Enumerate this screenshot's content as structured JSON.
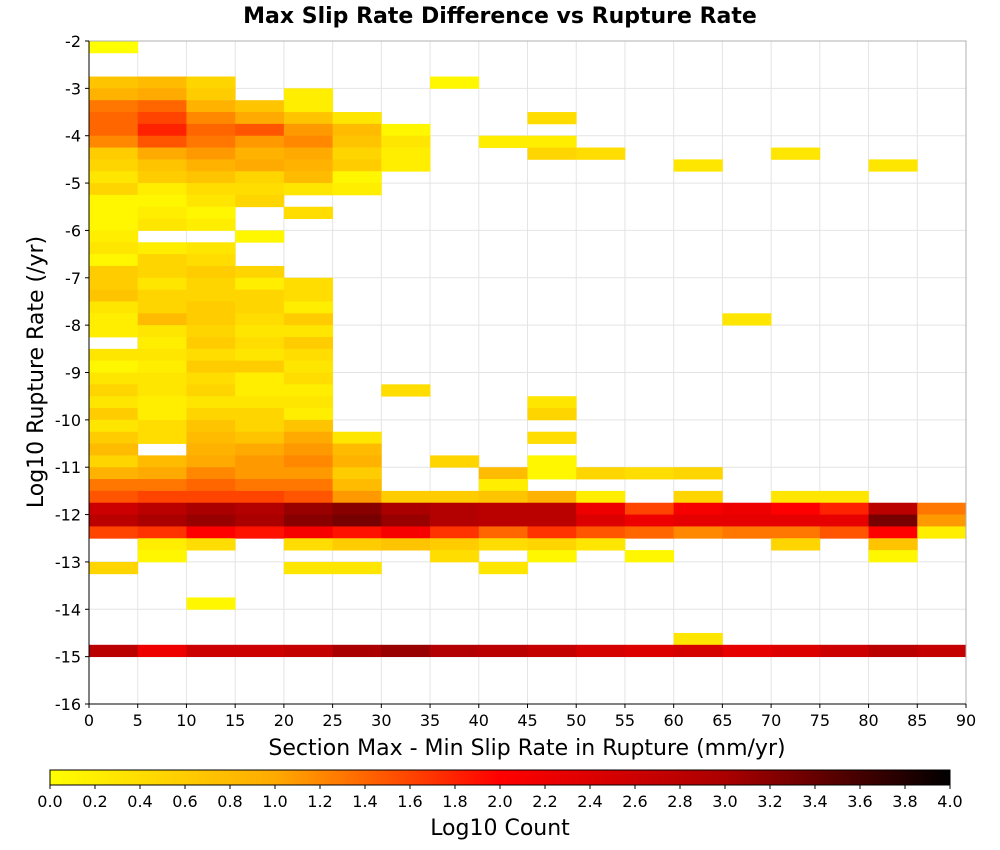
{
  "chart_data": {
    "type": "heatmap",
    "title": "Max Slip Rate Difference vs Rupture Rate",
    "xlabel": "Section Max - Min Slip Rate in Rupture (mm/yr)",
    "ylabel": "Log10 Rupture Rate (/yr)",
    "xlim": [
      0,
      90
    ],
    "ylim": [
      -16,
      -2
    ],
    "x_ticks": [
      0,
      5,
      10,
      15,
      20,
      25,
      30,
      35,
      40,
      45,
      50,
      55,
      60,
      65,
      70,
      75,
      80,
      85,
      90
    ],
    "y_ticks": [
      -2,
      -3,
      -4,
      -5,
      -6,
      -7,
      -8,
      -9,
      -10,
      -11,
      -12,
      -13,
      -14,
      -15,
      -16
    ],
    "x_bin_width": 5,
    "y_bin_height": 0.25,
    "grid": true,
    "colorbar": {
      "label": "Log10 Count",
      "min": 0.0,
      "max": 4.0,
      "ticks": [
        "0.0",
        "0.2",
        "0.4",
        "0.6",
        "0.8",
        "1.0",
        "1.2",
        "1.4",
        "1.6",
        "1.8",
        "2.0",
        "2.2",
        "2.4",
        "2.6",
        "2.8",
        "3.0",
        "3.2",
        "3.4",
        "3.6",
        "3.8",
        "4.0"
      ],
      "colors": [
        "#ffff00",
        "#ffaa00",
        "#ff0000",
        "#aa0000",
        "#000000"
      ],
      "placement": "bottom"
    },
    "cells": [
      [
        0,
        -2.25,
        0.0
      ],
      [
        0,
        -3.0,
        0.7
      ],
      [
        5,
        -3.0,
        0.8
      ],
      [
        10,
        -3.0,
        0.5
      ],
      [
        35,
        -3.0,
        0.1
      ],
      [
        0,
        -3.25,
        0.9
      ],
      [
        5,
        -3.25,
        1.0
      ],
      [
        10,
        -3.25,
        0.6
      ],
      [
        20,
        -3.25,
        0.2
      ],
      [
        0,
        -3.5,
        1.3
      ],
      [
        5,
        -3.5,
        1.4
      ],
      [
        10,
        -3.5,
        0.9
      ],
      [
        15,
        -3.5,
        0.7
      ],
      [
        20,
        -3.5,
        0.2
      ],
      [
        0,
        -3.75,
        1.4
      ],
      [
        5,
        -3.75,
        1.6
      ],
      [
        10,
        -3.75,
        1.2
      ],
      [
        15,
        -3.75,
        1.0
      ],
      [
        20,
        -3.75,
        0.7
      ],
      [
        25,
        -3.75,
        0.3
      ],
      [
        45,
        -3.75,
        0.4
      ],
      [
        0,
        -4.0,
        1.4
      ],
      [
        5,
        -4.0,
        1.8
      ],
      [
        10,
        -4.0,
        1.4
      ],
      [
        15,
        -4.0,
        1.5
      ],
      [
        20,
        -4.0,
        1.1
      ],
      [
        25,
        -4.0,
        0.8
      ],
      [
        30,
        -4.0,
        0.1
      ],
      [
        0,
        -4.25,
        1.2
      ],
      [
        5,
        -4.25,
        1.5
      ],
      [
        10,
        -4.25,
        1.3
      ],
      [
        15,
        -4.25,
        1.1
      ],
      [
        20,
        -4.25,
        1.2
      ],
      [
        25,
        -4.25,
        0.7
      ],
      [
        30,
        -4.25,
        0.3
      ],
      [
        40,
        -4.25,
        0.2
      ],
      [
        45,
        -4.25,
        0.2
      ],
      [
        0,
        -4.5,
        0.6
      ],
      [
        5,
        -4.5,
        1.0
      ],
      [
        10,
        -4.5,
        1.1
      ],
      [
        15,
        -4.5,
        0.9
      ],
      [
        20,
        -4.5,
        1.0
      ],
      [
        25,
        -4.5,
        0.5
      ],
      [
        30,
        -4.5,
        0.2
      ],
      [
        45,
        -4.5,
        0.5
      ],
      [
        50,
        -4.5,
        0.4
      ],
      [
        70,
        -4.5,
        0.3
      ],
      [
        0,
        -4.75,
        0.5
      ],
      [
        5,
        -4.75,
        0.7
      ],
      [
        10,
        -4.75,
        0.9
      ],
      [
        15,
        -4.75,
        1.0
      ],
      [
        20,
        -4.75,
        0.9
      ],
      [
        25,
        -4.75,
        0.6
      ],
      [
        30,
        -4.75,
        0.2
      ],
      [
        60,
        -4.75,
        0.3
      ],
      [
        80,
        -4.75,
        0.3
      ],
      [
        0,
        -5.0,
        0.3
      ],
      [
        5,
        -5.0,
        0.6
      ],
      [
        10,
        -5.0,
        0.7
      ],
      [
        15,
        -5.0,
        0.5
      ],
      [
        20,
        -5.0,
        0.8
      ],
      [
        25,
        -5.0,
        0.1
      ],
      [
        0,
        -5.25,
        0.5
      ],
      [
        5,
        -5.25,
        0.2
      ],
      [
        10,
        -5.25,
        0.4
      ],
      [
        15,
        -5.25,
        0.4
      ],
      [
        20,
        -5.25,
        0.3
      ],
      [
        25,
        -5.25,
        0.2
      ],
      [
        0,
        -5.5,
        0.1
      ],
      [
        5,
        -5.5,
        0.1
      ],
      [
        10,
        -5.5,
        0.3
      ],
      [
        15,
        -5.5,
        0.5
      ],
      [
        0,
        -5.75,
        0.1
      ],
      [
        5,
        -5.75,
        0.2
      ],
      [
        10,
        -5.75,
        0.1
      ],
      [
        20,
        -5.75,
        0.4
      ],
      [
        0,
        -6.0,
        0.1
      ],
      [
        5,
        -6.0,
        0.3
      ],
      [
        10,
        -6.0,
        0.2
      ],
      [
        0,
        -6.25,
        0.2
      ],
      [
        15,
        -6.25,
        0.1
      ],
      [
        0,
        -6.5,
        0.3
      ],
      [
        5,
        -6.5,
        0.2
      ],
      [
        10,
        -6.5,
        0.3
      ],
      [
        0,
        -6.75,
        0.1
      ],
      [
        5,
        -6.75,
        0.5
      ],
      [
        10,
        -6.75,
        0.4
      ],
      [
        0,
        -7.0,
        0.6
      ],
      [
        5,
        -7.0,
        0.5
      ],
      [
        10,
        -7.0,
        0.6
      ],
      [
        15,
        -7.0,
        0.5
      ],
      [
        0,
        -7.25,
        0.6
      ],
      [
        5,
        -7.25,
        0.3
      ],
      [
        10,
        -7.25,
        0.5
      ],
      [
        15,
        -7.25,
        0.2
      ],
      [
        20,
        -7.25,
        0.4
      ],
      [
        0,
        -7.5,
        0.7
      ],
      [
        5,
        -7.5,
        0.5
      ],
      [
        10,
        -7.5,
        0.5
      ],
      [
        15,
        -7.5,
        0.5
      ],
      [
        20,
        -7.5,
        0.4
      ],
      [
        0,
        -7.75,
        0.3
      ],
      [
        5,
        -7.75,
        0.5
      ],
      [
        10,
        -7.75,
        0.6
      ],
      [
        15,
        -7.75,
        0.5
      ],
      [
        20,
        -7.75,
        0.2
      ],
      [
        0,
        -8.0,
        0.2
      ],
      [
        5,
        -8.0,
        0.8
      ],
      [
        10,
        -8.0,
        0.6
      ],
      [
        15,
        -8.0,
        0.4
      ],
      [
        20,
        -8.0,
        0.6
      ],
      [
        65,
        -8.0,
        0.3
      ],
      [
        0,
        -8.25,
        0.2
      ],
      [
        5,
        -8.25,
        0.3
      ],
      [
        10,
        -8.25,
        0.5
      ],
      [
        15,
        -8.25,
        0.3
      ],
      [
        20,
        -8.25,
        0.3
      ],
      [
        5,
        -8.5,
        0.2
      ],
      [
        10,
        -8.5,
        0.6
      ],
      [
        15,
        -8.5,
        0.4
      ],
      [
        20,
        -8.5,
        0.6
      ],
      [
        0,
        -8.75,
        0.3
      ],
      [
        5,
        -8.75,
        0.3
      ],
      [
        10,
        -8.75,
        0.4
      ],
      [
        15,
        -8.75,
        0.3
      ],
      [
        20,
        -8.75,
        0.4
      ],
      [
        0,
        -9.0,
        0.1
      ],
      [
        5,
        -9.0,
        0.2
      ],
      [
        10,
        -9.0,
        0.6
      ],
      [
        15,
        -9.0,
        0.6
      ],
      [
        20,
        -9.0,
        0.3
      ],
      [
        0,
        -9.25,
        0.3
      ],
      [
        5,
        -9.25,
        0.3
      ],
      [
        10,
        -9.25,
        0.4
      ],
      [
        15,
        -9.25,
        0.2
      ],
      [
        20,
        -9.25,
        0.4
      ],
      [
        0,
        -9.5,
        0.5
      ],
      [
        5,
        -9.5,
        0.3
      ],
      [
        10,
        -9.5,
        0.5
      ],
      [
        15,
        -9.5,
        0.2
      ],
      [
        20,
        -9.5,
        0.2
      ],
      [
        30,
        -9.5,
        0.4
      ],
      [
        0,
        -9.75,
        0.3
      ],
      [
        5,
        -9.75,
        0.2
      ],
      [
        10,
        -9.75,
        0.3
      ],
      [
        15,
        -9.75,
        0.3
      ],
      [
        20,
        -9.75,
        0.3
      ],
      [
        45,
        -9.75,
        0.3
      ],
      [
        0,
        -10.0,
        0.6
      ],
      [
        5,
        -10.0,
        0.2
      ],
      [
        10,
        -10.0,
        0.5
      ],
      [
        15,
        -10.0,
        0.5
      ],
      [
        20,
        -10.0,
        0.2
      ],
      [
        45,
        -10.0,
        0.5
      ],
      [
        0,
        -10.25,
        0.3
      ],
      [
        5,
        -10.25,
        0.4
      ],
      [
        10,
        -10.25,
        0.7
      ],
      [
        15,
        -10.25,
        0.5
      ],
      [
        20,
        -10.25,
        0.7
      ],
      [
        0,
        -10.5,
        0.6
      ],
      [
        5,
        -10.5,
        0.4
      ],
      [
        10,
        -10.5,
        0.8
      ],
      [
        15,
        -10.5,
        0.7
      ],
      [
        20,
        -10.5,
        1.0
      ],
      [
        25,
        -10.5,
        0.3
      ],
      [
        45,
        -10.5,
        0.4
      ],
      [
        0,
        -10.75,
        0.8
      ],
      [
        10,
        -10.75,
        0.9
      ],
      [
        15,
        -10.75,
        1.0
      ],
      [
        20,
        -10.75,
        1.1
      ],
      [
        25,
        -10.75,
        0.8
      ],
      [
        0,
        -11.0,
        0.5
      ],
      [
        5,
        -11.0,
        0.8
      ],
      [
        10,
        -11.0,
        1.0
      ],
      [
        15,
        -11.0,
        1.1
      ],
      [
        20,
        -11.0,
        1.2
      ],
      [
        25,
        -11.0,
        0.9
      ],
      [
        35,
        -11.0,
        0.5
      ],
      [
        45,
        -11.0,
        0.1
      ],
      [
        0,
        -11.25,
        0.9
      ],
      [
        5,
        -11.25,
        1.0
      ],
      [
        10,
        -11.25,
        1.2
      ],
      [
        15,
        -11.25,
        1.1
      ],
      [
        20,
        -11.25,
        1.1
      ],
      [
        25,
        -11.25,
        0.6
      ],
      [
        40,
        -11.25,
        0.8
      ],
      [
        45,
        -11.25,
        0.1
      ],
      [
        50,
        -11.25,
        0.5
      ],
      [
        55,
        -11.25,
        0.4
      ],
      [
        60,
        -11.25,
        0.5
      ],
      [
        0,
        -11.5,
        1.3
      ],
      [
        5,
        -11.5,
        1.3
      ],
      [
        10,
        -11.5,
        1.4
      ],
      [
        15,
        -11.5,
        1.3
      ],
      [
        20,
        -11.5,
        1.3
      ],
      [
        25,
        -11.5,
        0.8
      ],
      [
        40,
        -11.5,
        0.2
      ],
      [
        0,
        -11.75,
        1.5
      ],
      [
        5,
        -11.75,
        1.6
      ],
      [
        10,
        -11.75,
        1.6
      ],
      [
        15,
        -11.75,
        1.6
      ],
      [
        20,
        -11.75,
        1.5
      ],
      [
        25,
        -11.75,
        1.1
      ],
      [
        30,
        -11.75,
        0.6
      ],
      [
        35,
        -11.75,
        0.6
      ],
      [
        40,
        -11.75,
        0.7
      ],
      [
        45,
        -11.75,
        0.9
      ],
      [
        50,
        -11.75,
        0.2
      ],
      [
        60,
        -11.75,
        0.5
      ],
      [
        70,
        -11.75,
        0.3
      ],
      [
        75,
        -11.75,
        0.3
      ],
      [
        0,
        -12.0,
        2.6
      ],
      [
        5,
        -12.0,
        2.8
      ],
      [
        10,
        -12.0,
        3.0
      ],
      [
        15,
        -12.0,
        2.9
      ],
      [
        20,
        -12.0,
        3.1
      ],
      [
        25,
        -12.0,
        3.2
      ],
      [
        30,
        -12.0,
        3.0
      ],
      [
        35,
        -12.0,
        2.9
      ],
      [
        40,
        -12.0,
        2.8
      ],
      [
        45,
        -12.0,
        2.8
      ],
      [
        50,
        -12.0,
        2.2
      ],
      [
        55,
        -12.0,
        1.6
      ],
      [
        60,
        -12.0,
        2.1
      ],
      [
        65,
        -12.0,
        2.2
      ],
      [
        70,
        -12.0,
        2.0
      ],
      [
        75,
        -12.0,
        1.8
      ],
      [
        80,
        -12.0,
        2.8
      ],
      [
        85,
        -12.0,
        1.3
      ],
      [
        0,
        -12.25,
        2.8
      ],
      [
        5,
        -12.25,
        3.0
      ],
      [
        10,
        -12.25,
        3.1
      ],
      [
        15,
        -12.25,
        3.0
      ],
      [
        20,
        -12.25,
        3.2
      ],
      [
        25,
        -12.25,
        3.3
      ],
      [
        30,
        -12.25,
        3.1
      ],
      [
        35,
        -12.25,
        2.9
      ],
      [
        40,
        -12.25,
        2.8
      ],
      [
        45,
        -12.25,
        2.8
      ],
      [
        50,
        -12.25,
        2.4
      ],
      [
        55,
        -12.25,
        2.2
      ],
      [
        60,
        -12.25,
        2.3
      ],
      [
        65,
        -12.25,
        2.3
      ],
      [
        70,
        -12.25,
        2.3
      ],
      [
        75,
        -12.25,
        2.3
      ],
      [
        80,
        -12.25,
        3.3
      ],
      [
        85,
        -12.25,
        1.1
      ],
      [
        0,
        -12.5,
        1.6
      ],
      [
        5,
        -12.5,
        1.7
      ],
      [
        10,
        -12.5,
        2.0
      ],
      [
        15,
        -12.5,
        1.9
      ],
      [
        20,
        -12.5,
        2.1
      ],
      [
        25,
        -12.5,
        1.9
      ],
      [
        30,
        -12.5,
        2.1
      ],
      [
        35,
        -12.5,
        1.7
      ],
      [
        40,
        -12.5,
        1.4
      ],
      [
        45,
        -12.5,
        1.7
      ],
      [
        50,
        -12.5,
        1.5
      ],
      [
        55,
        -12.5,
        1.4
      ],
      [
        60,
        -12.5,
        1.2
      ],
      [
        65,
        -12.5,
        1.3
      ],
      [
        70,
        -12.5,
        1.3
      ],
      [
        75,
        -12.5,
        1.5
      ],
      [
        80,
        -12.5,
        2.0
      ],
      [
        85,
        -12.5,
        0.2
      ],
      [
        5,
        -12.75,
        0.2
      ],
      [
        10,
        -12.75,
        0.4
      ],
      [
        20,
        -12.75,
        0.4
      ],
      [
        25,
        -12.75,
        0.6
      ],
      [
        30,
        -12.75,
        0.7
      ],
      [
        35,
        -12.75,
        0.6
      ],
      [
        40,
        -12.75,
        0.4
      ],
      [
        45,
        -12.75,
        0.5
      ],
      [
        50,
        -12.75,
        0.3
      ],
      [
        70,
        -12.75,
        0.5
      ],
      [
        80,
        -12.75,
        0.7
      ],
      [
        5,
        -13.0,
        0.1
      ],
      [
        35,
        -13.0,
        0.4
      ],
      [
        45,
        -13.0,
        0.1
      ],
      [
        55,
        -13.0,
        0.1
      ],
      [
        80,
        -13.0,
        0.1
      ],
      [
        0,
        -13.25,
        0.5
      ],
      [
        20,
        -13.25,
        0.3
      ],
      [
        25,
        -13.25,
        0.3
      ],
      [
        40,
        -13.25,
        0.3
      ],
      [
        10,
        -14.0,
        0.1
      ],
      [
        60,
        -14.75,
        0.3
      ],
      [
        0,
        -15.0,
        2.8
      ],
      [
        5,
        -15.0,
        2.2
      ],
      [
        10,
        -15.0,
        2.6
      ],
      [
        15,
        -15.0,
        2.6
      ],
      [
        20,
        -15.0,
        2.7
      ],
      [
        25,
        -15.0,
        3.0
      ],
      [
        30,
        -15.0,
        3.1
      ],
      [
        35,
        -15.0,
        2.9
      ],
      [
        40,
        -15.0,
        2.8
      ],
      [
        45,
        -15.0,
        2.7
      ],
      [
        50,
        -15.0,
        2.5
      ],
      [
        55,
        -15.0,
        2.4
      ],
      [
        60,
        -15.0,
        2.5
      ],
      [
        65,
        -15.0,
        2.3
      ],
      [
        70,
        -15.0,
        2.4
      ],
      [
        75,
        -15.0,
        2.6
      ],
      [
        80,
        -15.0,
        2.8
      ],
      [
        85,
        -15.0,
        2.7
      ]
    ]
  }
}
